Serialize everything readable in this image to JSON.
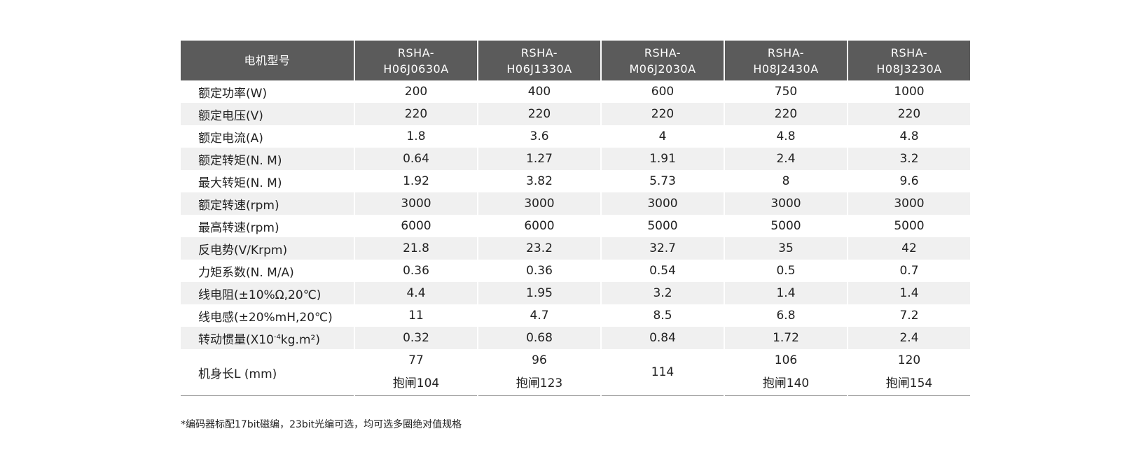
{
  "table": {
    "header": {
      "label": "电机型号",
      "models": [
        {
          "line1": "RSHA-",
          "line2": "H06J0630A"
        },
        {
          "line1": "RSHA-",
          "line2": "H06J1330A"
        },
        {
          "line1": "RSHA-",
          "line2": "M06J2030A"
        },
        {
          "line1": "RSHA-",
          "line2": "H08J2430A"
        },
        {
          "line1": "RSHA-",
          "line2": "H08J3230A"
        }
      ]
    },
    "rows": [
      {
        "label": "额定功率(W)",
        "values": [
          "200",
          "400",
          "600",
          "750",
          "1000"
        ]
      },
      {
        "label": "额定电压(V)",
        "values": [
          "220",
          "220",
          "220",
          "220",
          "220"
        ]
      },
      {
        "label": "额定电流(A)",
        "values": [
          "1.8",
          "3.6",
          "4",
          "4.8",
          "4.8"
        ]
      },
      {
        "label": "额定转矩(N. M)",
        "values": [
          "0.64",
          "1.27",
          "1.91",
          "2.4",
          "3.2"
        ]
      },
      {
        "label": "最大转矩(N. M)",
        "values": [
          "1.92",
          "3.82",
          "5.73",
          "8",
          "9.6"
        ]
      },
      {
        "label": "额定转速(rpm)",
        "values": [
          "3000",
          "3000",
          "3000",
          "3000",
          "3000"
        ]
      },
      {
        "label": "最高转速(rpm)",
        "values": [
          "6000",
          "6000",
          "5000",
          "5000",
          "5000"
        ]
      },
      {
        "label": "反电势(V/Krpm)",
        "values": [
          "21.8",
          "23.2",
          "32.7",
          "35",
          "42"
        ]
      },
      {
        "label": "力矩系数(N. M/A)",
        "values": [
          "0.36",
          "0.36",
          "0.54",
          "0.5",
          "0.7"
        ]
      },
      {
        "label": "线电阻(±10%Ω,20℃)",
        "values": [
          "4.4",
          "1.95",
          "3.2",
          "1.4",
          "1.4"
        ]
      },
      {
        "label": "线电感(±20%mH,20℃)",
        "values": [
          "11",
          "4.7",
          "8.5",
          "6.8",
          "7.2"
        ]
      },
      {
        "label_prefix": "转动惯量(X10",
        "label_sup": "-4",
        "label_suffix": "kg.m²)",
        "values": [
          "0.32",
          "0.68",
          "0.84",
          "1.72",
          "2.4"
        ]
      }
    ],
    "length_row": {
      "label": "机身长L (mm)",
      "values": [
        {
          "main": "77",
          "brake": "抱闸104"
        },
        {
          "main": "96",
          "brake": "抱闸123"
        },
        {
          "main": "114",
          "brake": ""
        },
        {
          "main": "106",
          "brake": "抱闸140"
        },
        {
          "main": "120",
          "brake": "抱闸154"
        }
      ]
    }
  },
  "note": "*编码器标配17bit磁编，23bit光编可选，均可选多圈绝对值规格"
}
